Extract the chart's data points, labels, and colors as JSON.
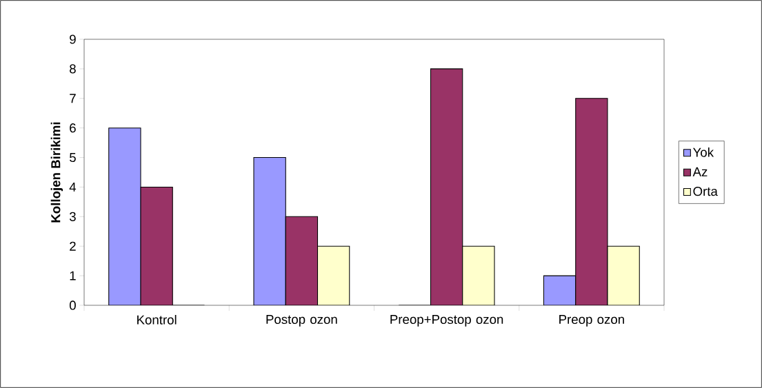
{
  "chart_data": {
    "type": "bar",
    "ylabel": "Kollojen Birikimi",
    "categories": [
      "Kontrol",
      "Postop ozon",
      "Preop+Postop ozon",
      "Preop ozon"
    ],
    "series": [
      {
        "name": "Yok",
        "color": "#9999ff",
        "values": [
          6,
          5,
          0,
          1
        ]
      },
      {
        "name": "Az",
        "color": "#993366",
        "values": [
          4,
          3,
          8,
          7
        ]
      },
      {
        "name": "Orta",
        "color": "#ffffcc",
        "values": [
          0,
          2,
          2,
          2
        ]
      }
    ],
    "ylim": [
      0,
      9
    ],
    "yticks": [
      0,
      1,
      2,
      3,
      4,
      5,
      6,
      7,
      8,
      9
    ],
    "grid": false,
    "legend": "right"
  }
}
